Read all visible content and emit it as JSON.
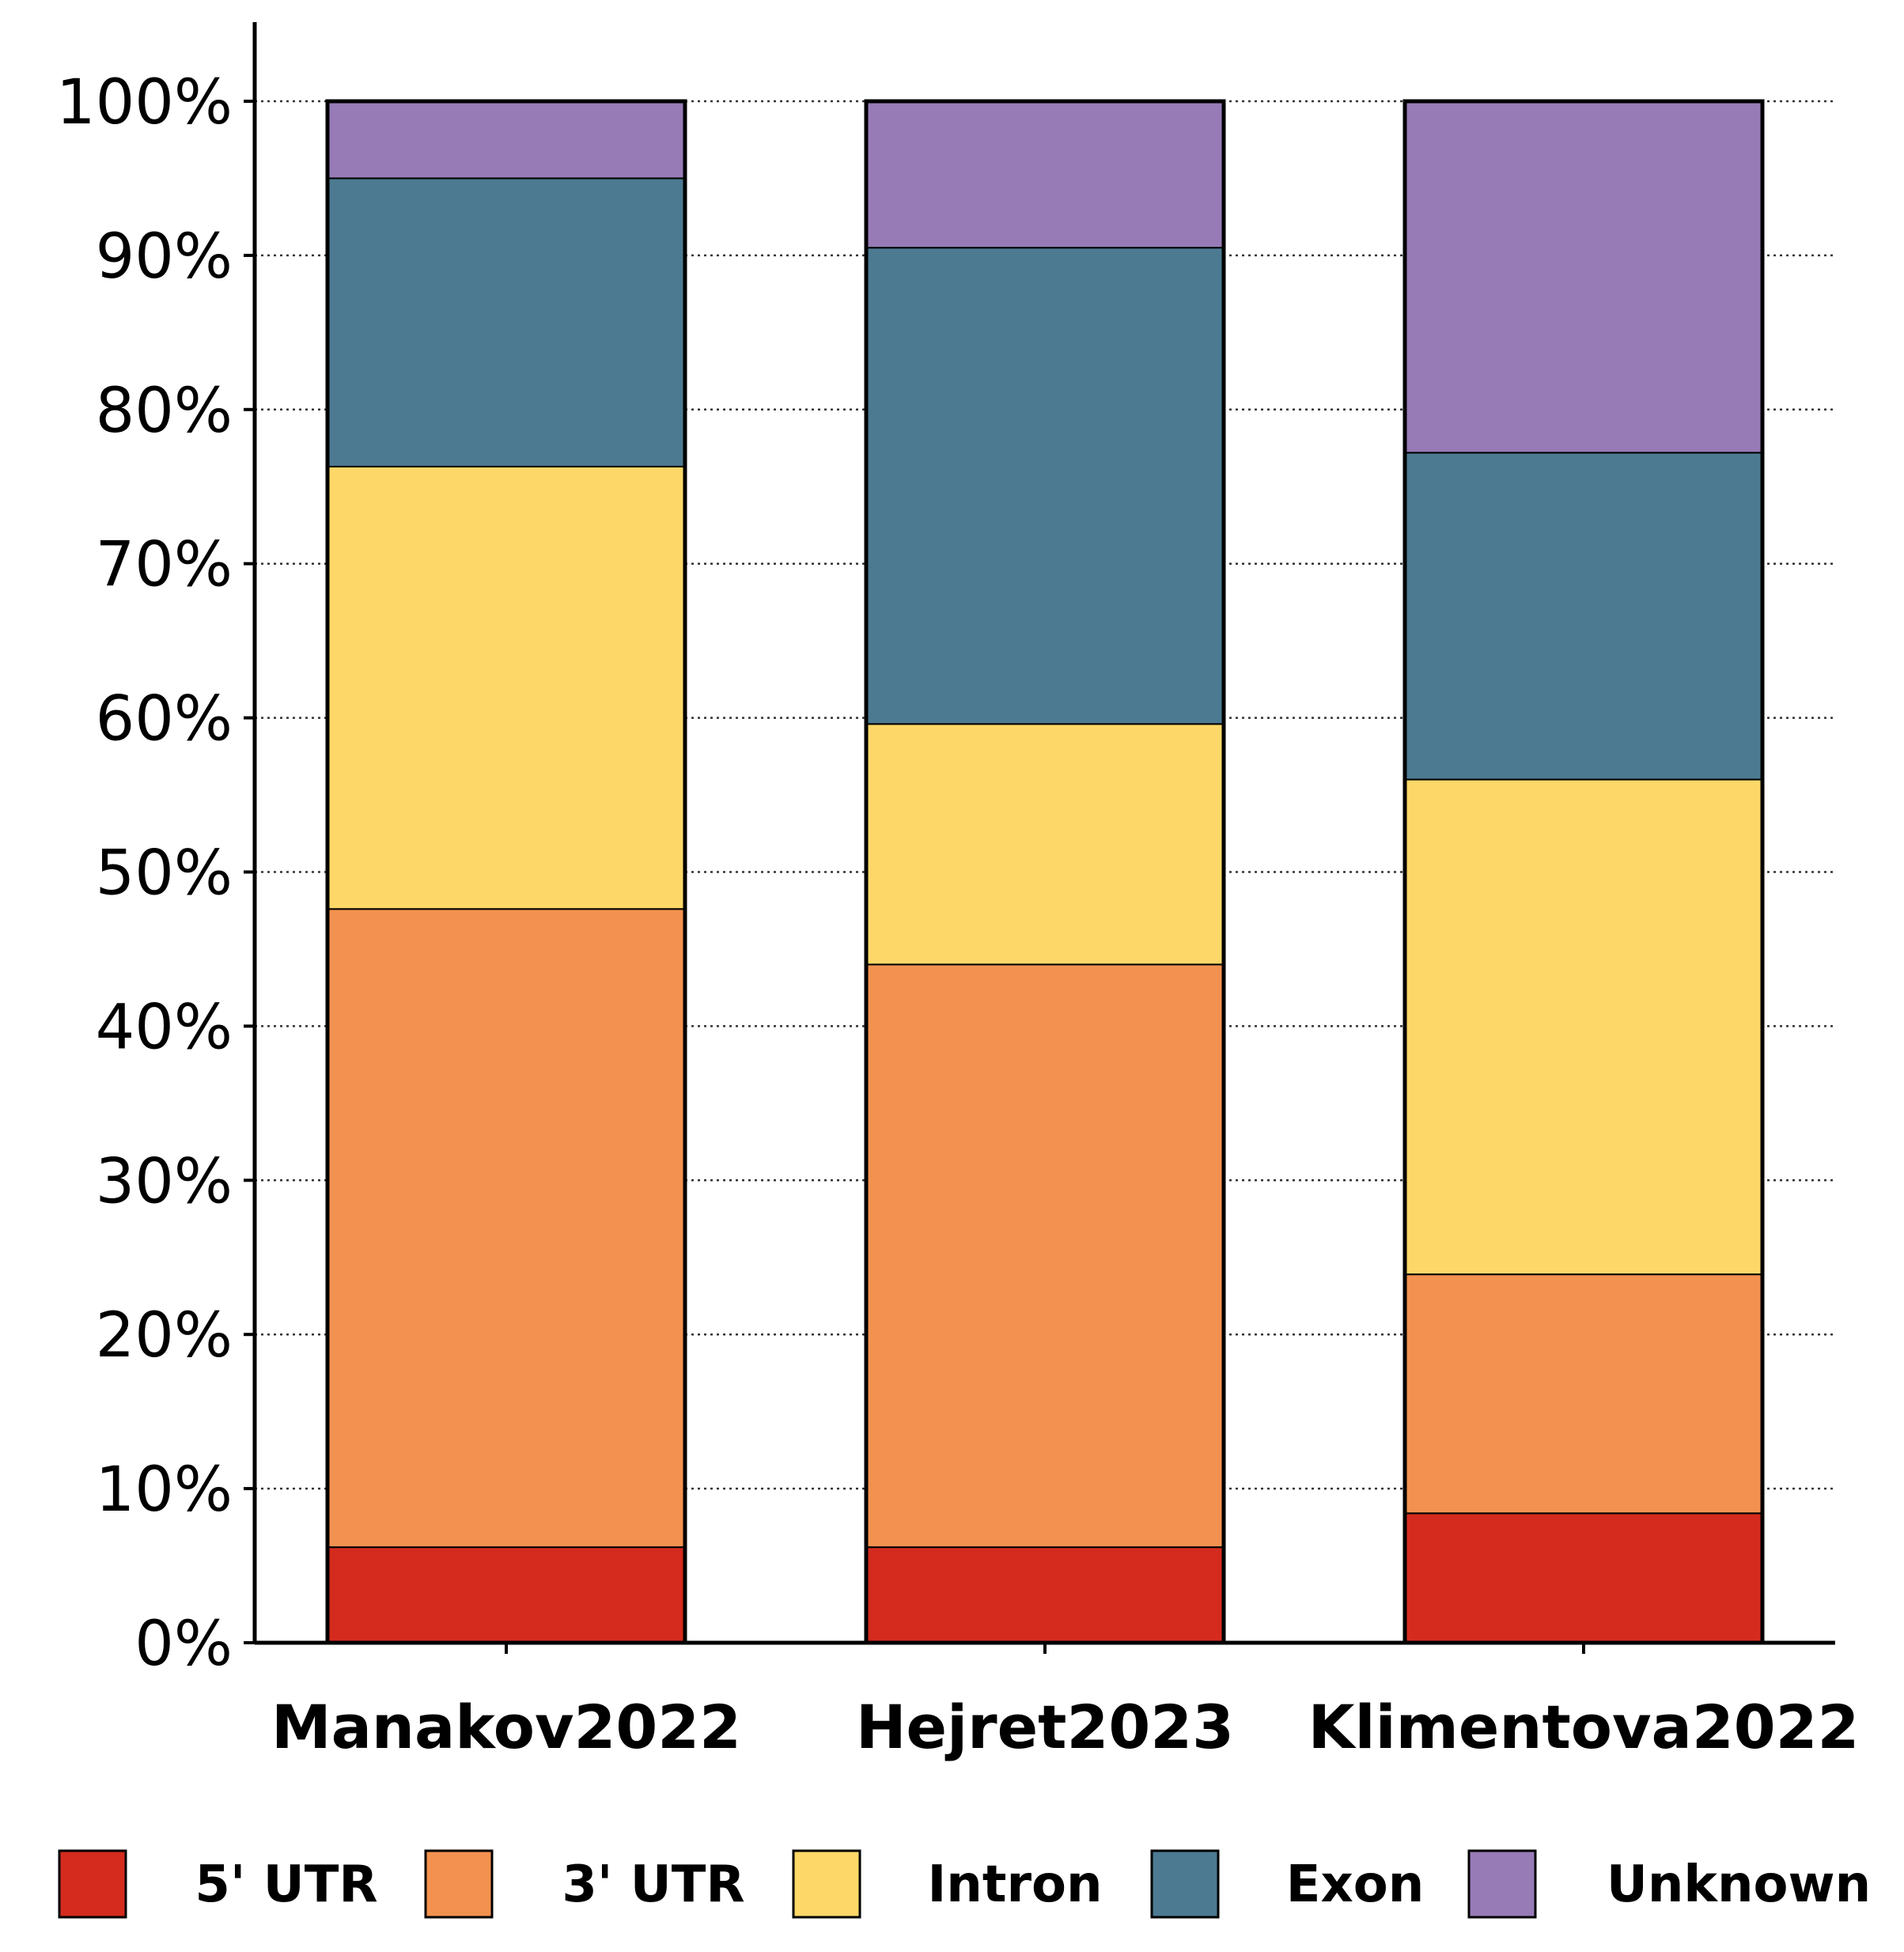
{
  "chart_data": {
    "type": "bar",
    "stacked": true,
    "normalized": true,
    "title": "",
    "xlabel": "",
    "ylabel": "",
    "ylim": [
      0,
      100
    ],
    "y_ticks": [
      "0%",
      "10%",
      "20%",
      "30%",
      "40%",
      "50%",
      "60%",
      "70%",
      "80%",
      "90%",
      "100%"
    ],
    "grid": "horizontal dotted",
    "legend_position": "bottom",
    "categories": [
      "Manakov2022",
      "Hejret2023",
      "Klimentova2022"
    ],
    "series": [
      {
        "name": "5' UTR",
        "color": "#d42b1e",
        "values": [
          6.2,
          6.2,
          8.4
        ]
      },
      {
        "name": "3' UTR",
        "color": "#f39250",
        "values": [
          41.4,
          37.8,
          15.5
        ]
      },
      {
        "name": "Intron",
        "color": "#fdd868",
        "values": [
          28.7,
          15.6,
          32.1
        ]
      },
      {
        "name": "Exon",
        "color": "#4c7a91",
        "values": [
          18.7,
          30.9,
          21.2
        ]
      },
      {
        "name": "Unknown",
        "color": "#977bb6",
        "values": [
          5.0,
          9.5,
          22.8
        ]
      }
    ]
  }
}
